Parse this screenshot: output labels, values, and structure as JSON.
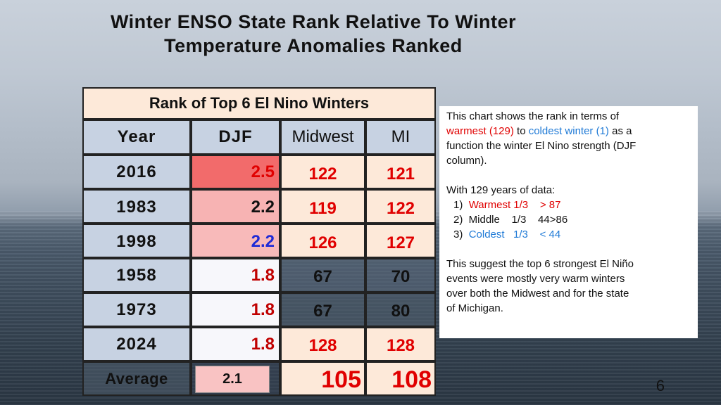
{
  "title": {
    "line1": "Winter ENSO State Rank Relative To Winter",
    "line2": "Temperature Anomalies Ranked"
  },
  "table": {
    "caption": "Rank of Top 6 El Nino Winters",
    "headers": [
      "Year",
      "DJF",
      "Midwest",
      "MI"
    ],
    "rows": [
      {
        "year": "2016",
        "djf": "2.5",
        "midwest": "122",
        "mi": "121"
      },
      {
        "year": "1983",
        "djf": "2.2",
        "midwest": "119",
        "mi": "122"
      },
      {
        "year": "1998",
        "djf": "2.2",
        "midwest": "126",
        "mi": "127"
      },
      {
        "year": "1958",
        "djf": "1.8",
        "midwest": "67",
        "mi": "70"
      },
      {
        "year": "1973",
        "djf": "1.8",
        "midwest": "67",
        "mi": "80"
      },
      {
        "year": "2024",
        "djf": "1.8",
        "midwest": "128",
        "mi": "128"
      }
    ],
    "average": {
      "label": "Average",
      "djf": "2.1",
      "midwest": "105",
      "mi": "108"
    }
  },
  "info": {
    "p1_a": "This chart shows the rank in terms of",
    "p1_warm": "warmest (129)",
    "p1_to": " to ",
    "p1_cold": "coldest winter (1)",
    "p1_b": " as a",
    "p1_c": "function the winter El Nino strength (DJF",
    "p1_d": "column).",
    "p2": "With 129 years of data:",
    "item1_num": "1)  ",
    "item1_text": "Warmest 1/3    > 87",
    "item2": "2)  Middle    1/3    44>86",
    "item3_num": "3)  ",
    "item3_text": "Coldest   1/3    < 44",
    "p3_a": "This suggest the top 6 strongest El Niño",
    "p3_b": "events were mostly very warm winters",
    "p3_c": "over both the Midwest and for the state",
    "p3_d": "of Michigan."
  },
  "page_number": "6",
  "colors": {
    "warm": "#e00000",
    "cold": "#1f7ad6",
    "djf_2016": "#f26b6b",
    "djf_1983": "#f7b3b3",
    "djf_1998": "#f8baba",
    "djf_avg": "#f9c3c3"
  }
}
